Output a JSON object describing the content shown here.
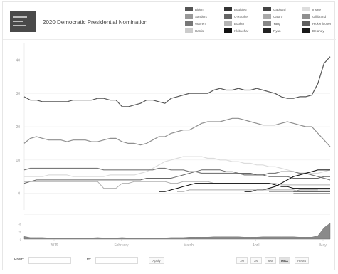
{
  "header": {
    "kicker": "",
    "title": "2020 Democratic Presidential Nomination"
  },
  "legend": [
    {
      "code": "",
      "name": "Biden",
      "color": "#555555"
    },
    {
      "code": "",
      "name": "Sanders",
      "color": "#999999"
    },
    {
      "code": "",
      "name": "Warren",
      "color": "#777777"
    },
    {
      "code": "",
      "name": "Harris",
      "color": "#cccccc"
    },
    {
      "code": "",
      "name": "Buttigieg",
      "color": "#333333"
    },
    {
      "code": "",
      "name": "O'Rourke",
      "color": "#666666"
    },
    {
      "code": "",
      "name": "Booker",
      "color": "#b5b5b5"
    },
    {
      "code": "",
      "name": "Klobuchar",
      "color": "#111111"
    },
    {
      "code": "",
      "name": "Gabbard",
      "color": "#444444"
    },
    {
      "code": "",
      "name": "Castro",
      "color": "#aaaaaa"
    },
    {
      "code": "",
      "name": "Yang",
      "color": "#888888"
    },
    {
      "code": "",
      "name": "Ryan",
      "color": "#222222"
    },
    {
      "code": "",
      "name": "Inslee",
      "color": "#dddddd"
    },
    {
      "code": "",
      "name": "Gillibrand",
      "color": "#8f8f8f"
    },
    {
      "code": "",
      "name": "Hickenlooper",
      "color": "#5f5f5f"
    },
    {
      "code": "",
      "name": "Delaney",
      "color": "#1a1a1a"
    }
  ],
  "controls": {
    "from_label": "From:",
    "to_label": "to:",
    "apply_label": "Apply",
    "ranges": [
      "1M",
      "3M",
      "6M",
      "MAX",
      "Reset"
    ],
    "active_range": "MAX"
  },
  "footer_note": "",
  "chart_data": {
    "type": "line",
    "title": "2020 Democratic Presidential Nomination",
    "x_ticks": [
      "2019",
      "February",
      "March",
      "April",
      "May"
    ],
    "y_ticks": [
      0,
      10,
      20,
      30,
      40
    ],
    "ylim": [
      -5,
      45
    ],
    "grid": true,
    "legend_placement": "top-right",
    "x": [
      0,
      2,
      4,
      6,
      8,
      10,
      12,
      14,
      16,
      18,
      20,
      22,
      24,
      26,
      28,
      30,
      32,
      34,
      36,
      38,
      40,
      42,
      44,
      46,
      48,
      50,
      52,
      54,
      56,
      58,
      60,
      62,
      64,
      66,
      68,
      70,
      72,
      74,
      76,
      78,
      80,
      82,
      84,
      86,
      88,
      90,
      92,
      94,
      96,
      98,
      100
    ],
    "series": [
      {
        "name": "Biden",
        "color": "#555555",
        "width": 1.2,
        "values": [
          29.0,
          28.0,
          28.0,
          27.5,
          27.5,
          27.5,
          27.5,
          27.5,
          28.0,
          28.0,
          28.0,
          28.0,
          28.5,
          28.5,
          28.0,
          28.0,
          26.0,
          26.0,
          26.5,
          27.0,
          28.0,
          28.0,
          27.5,
          27.0,
          28.5,
          29.0,
          29.5,
          30.0,
          30.0,
          30.0,
          30.0,
          31.0,
          31.5,
          31.0,
          31.0,
          31.5,
          31.0,
          31.0,
          31.5,
          31.0,
          30.5,
          30.0,
          29.0,
          28.5,
          28.5,
          29.0,
          29.0,
          29.5,
          33.0,
          39.0,
          41.0
        ]
      },
      {
        "name": "Sanders",
        "color": "#8f8f8f",
        "width": 1.2,
        "values": [
          15.0,
          16.5,
          17.0,
          16.5,
          16.0,
          16.0,
          16.0,
          15.5,
          16.0,
          16.0,
          16.0,
          15.5,
          15.5,
          16.0,
          16.5,
          16.5,
          15.5,
          15.0,
          15.0,
          14.5,
          15.0,
          16.0,
          17.0,
          17.0,
          18.0,
          18.5,
          19.0,
          19.0,
          20.0,
          21.0,
          21.5,
          21.5,
          21.5,
          22.0,
          22.5,
          22.5,
          22.0,
          21.5,
          21.0,
          20.5,
          20.5,
          20.5,
          21.0,
          21.5,
          21.0,
          20.5,
          20.0,
          20.0,
          18.0,
          16.0,
          14.0
        ]
      },
      {
        "name": "Harris",
        "color": "#dcdcdc",
        "width": 1.2,
        "values": [
          5.0,
          5.0,
          5.0,
          5.0,
          5.5,
          5.5,
          5.5,
          5.5,
          5.0,
          5.0,
          5.0,
          5.0,
          5.0,
          5.0,
          5.5,
          5.5,
          5.5,
          5.5,
          5.5,
          6.0,
          6.5,
          7.5,
          8.5,
          9.5,
          10.0,
          10.5,
          11.0,
          11.0,
          11.0,
          11.0,
          10.5,
          10.5,
          10.0,
          10.0,
          9.5,
          9.5,
          9.0,
          9.0,
          8.5,
          8.5,
          8.0,
          8.0,
          7.5,
          7.0,
          6.5,
          6.0,
          6.0,
          6.0,
          6.0,
          6.5,
          7.0
        ]
      },
      {
        "name": "Warren",
        "color": "#7a7a7a",
        "width": 1.2,
        "values": [
          7.0,
          7.5,
          7.5,
          7.5,
          7.5,
          7.5,
          7.5,
          7.5,
          7.5,
          7.5,
          7.5,
          7.5,
          7.5,
          7.0,
          7.0,
          7.0,
          7.0,
          7.0,
          7.0,
          7.0,
          7.0,
          7.0,
          7.5,
          7.5,
          7.0,
          7.0,
          7.0,
          6.5,
          6.5,
          6.0,
          6.0,
          6.0,
          6.0,
          6.0,
          6.0,
          6.0,
          5.5,
          5.5,
          5.5,
          5.5,
          6.0,
          6.0,
          6.5,
          6.5,
          6.5,
          6.0,
          6.0,
          5.5,
          5.0,
          4.5,
          4.0
        ]
      },
      {
        "name": "O'Rourke",
        "color": "#666666",
        "width": 1.0,
        "values": [
          3.0,
          3.5,
          4.0,
          4.0,
          4.0,
          4.0,
          4.0,
          4.0,
          4.0,
          4.0,
          4.0,
          4.0,
          4.0,
          4.0,
          4.0,
          4.0,
          4.0,
          4.0,
          4.0,
          4.0,
          4.5,
          4.5,
          4.5,
          4.5,
          4.5,
          5.0,
          5.5,
          6.0,
          6.5,
          7.0,
          7.0,
          7.0,
          7.0,
          6.5,
          6.5,
          6.0,
          6.0,
          6.0,
          5.5,
          5.5,
          5.0,
          5.0,
          5.0,
          5.0,
          4.5,
          4.5,
          4.5,
          4.5,
          4.5,
          5.0,
          5.0
        ]
      },
      {
        "name": "Booker",
        "color": "#b0b0b0",
        "width": 1.0,
        "values": [
          3.5,
          3.5,
          3.5,
          3.5,
          3.5,
          3.5,
          3.5,
          3.5,
          3.5,
          3.5,
          3.5,
          3.5,
          3.5,
          1.5,
          1.5,
          1.5,
          3.0,
          3.0,
          3.5,
          3.5,
          3.5,
          3.5,
          3.5,
          3.5,
          3.0,
          3.0,
          3.5,
          3.5,
          3.5,
          3.5,
          3.5,
          3.0,
          3.0,
          3.0,
          3.0,
          3.0,
          3.0,
          3.0,
          3.0,
          3.0,
          3.0,
          3.0,
          2.5,
          2.5,
          2.5,
          2.5,
          2.5,
          2.5,
          2.5,
          2.5,
          2.5
        ]
      },
      {
        "name": "Buttigieg",
        "color": "#222222",
        "width": 1.2,
        "values": [
          null,
          null,
          null,
          null,
          null,
          null,
          null,
          null,
          null,
          null,
          null,
          null,
          null,
          null,
          null,
          null,
          null,
          null,
          null,
          null,
          null,
          null,
          null,
          null,
          null,
          null,
          null,
          null,
          null,
          null,
          null,
          null,
          null,
          null,
          null,
          null,
          0.5,
          0.5,
          1.0,
          1.0,
          1.5,
          2.0,
          3.0,
          4.0,
          5.0,
          5.5,
          6.0,
          6.5,
          7.0,
          7.0,
          7.0
        ]
      },
      {
        "name": "Klobuchar",
        "color": "#111111",
        "width": 1.0,
        "values": [
          null,
          null,
          null,
          null,
          null,
          null,
          null,
          null,
          null,
          null,
          null,
          null,
          null,
          null,
          null,
          null,
          null,
          null,
          null,
          null,
          null,
          null,
          0.5,
          0.5,
          1.0,
          1.5,
          2.0,
          2.5,
          3.0,
          3.0,
          3.0,
          3.0,
          3.0,
          3.0,
          3.0,
          3.0,
          3.0,
          3.0,
          3.0,
          3.0,
          3.0,
          2.5,
          2.0,
          2.0,
          1.5,
          1.5,
          1.5,
          1.5,
          1.5,
          1.5,
          1.5
        ]
      },
      {
        "name": "Yang",
        "color": "#888888",
        "width": 1.0,
        "values": [
          null,
          null,
          null,
          null,
          null,
          null,
          null,
          null,
          null,
          null,
          null,
          null,
          null,
          null,
          null,
          null,
          null,
          null,
          null,
          null,
          null,
          null,
          null,
          null,
          null,
          null,
          null,
          null,
          null,
          null,
          null,
          null,
          null,
          null,
          null,
          null,
          null,
          null,
          null,
          null,
          0.5,
          0.5,
          0.5,
          0.5,
          0.5,
          1.0,
          1.0,
          1.0,
          1.0,
          1.0,
          1.0
        ]
      },
      {
        "name": "Castro",
        "color": "#aaaaaa",
        "width": 1.0,
        "values": [
          null,
          null,
          null,
          null,
          null,
          null,
          null,
          null,
          null,
          null,
          null,
          null,
          null,
          null,
          null,
          null,
          null,
          null,
          null,
          null,
          null,
          null,
          null,
          null,
          null,
          0.5,
          0.5,
          1.0,
          1.0,
          1.0,
          1.0,
          1.0,
          1.0,
          1.0,
          1.0,
          1.0,
          1.0,
          1.0,
          1.0,
          1.0,
          1.0,
          1.0,
          1.0,
          1.0,
          1.0,
          0.5,
          0.5,
          0.5,
          0.5,
          0.5,
          0.5
        ]
      },
      {
        "name": "Gabbard",
        "color": "#444444",
        "width": 1.0,
        "values": [
          null,
          null,
          null,
          null,
          null,
          null,
          null,
          null,
          null,
          null,
          null,
          null,
          null,
          null,
          null,
          null,
          null,
          null,
          null,
          null,
          null,
          null,
          null,
          null,
          null,
          null,
          null,
          null,
          null,
          null,
          null,
          null,
          null,
          null,
          null,
          null,
          null,
          null,
          null,
          null,
          null,
          null,
          null,
          null,
          0.5,
          0.5,
          0.5,
          0.5,
          0.5,
          0.5,
          0.5
        ]
      },
      {
        "name": "Gillibrand",
        "color": "#9a9a9a",
        "width": 1.0,
        "values": [
          null,
          null,
          null,
          null,
          null,
          null,
          null,
          null,
          null,
          null,
          null,
          null,
          null,
          null,
          null,
          null,
          null,
          null,
          null,
          null,
          null,
          null,
          null,
          null,
          null,
          null,
          null,
          null,
          null,
          null,
          null,
          null,
          null,
          null,
          null,
          null,
          null,
          null,
          null,
          null,
          null,
          null,
          null,
          null,
          0.0,
          0.0,
          0.0,
          0.0,
          0.0,
          0.0,
          0.0
        ]
      },
      {
        "name": "Inslee",
        "color": "#d8d8d8",
        "width": 1.0,
        "values": [
          null,
          null,
          null,
          null,
          null,
          null,
          null,
          null,
          null,
          null,
          null,
          null,
          null,
          null,
          null,
          null,
          null,
          null,
          null,
          null,
          null,
          null,
          null,
          null,
          null,
          null,
          null,
          null,
          null,
          null,
          null,
          null,
          null,
          null,
          null,
          null,
          null,
          null,
          null,
          null,
          null,
          null,
          null,
          null,
          null,
          null,
          null,
          null,
          1.0,
          1.0,
          1.0
        ]
      }
    ],
    "navigator": {
      "y_ticks": [
        40,
        20,
        0
      ],
      "values": [
        7,
        4,
        4,
        4,
        3,
        3,
        3,
        3,
        3,
        3,
        3,
        3,
        4,
        3,
        3,
        3,
        4,
        3,
        3,
        3,
        3,
        3,
        3,
        3,
        4,
        4,
        4,
        5,
        5,
        5,
        5,
        6,
        6,
        6,
        6,
        6,
        5,
        5,
        5,
        6,
        6,
        6,
        6,
        6,
        6,
        5,
        5,
        5,
        9,
        30,
        42
      ]
    }
  }
}
